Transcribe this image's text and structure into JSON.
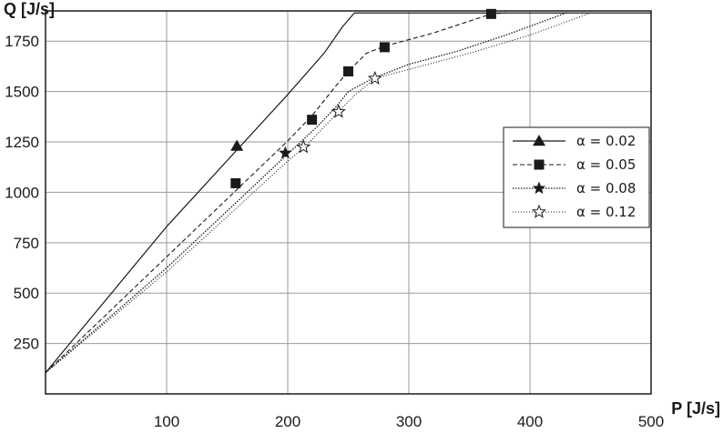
{
  "chart_data": {
    "type": "line",
    "xlabel": "P [J/s]",
    "ylabel": "Q [J/s]",
    "xlim": [
      0,
      500
    ],
    "ylim": [
      0,
      1900
    ],
    "xticks": [
      100,
      200,
      300,
      400,
      500
    ],
    "yticks": [
      250,
      500,
      750,
      1000,
      1250,
      1500,
      1750
    ],
    "grid": true,
    "legend_position": "right",
    "series": [
      {
        "name": "α = 0.02",
        "style": "solid",
        "marker": "triangle",
        "line": [
          [
            0,
            105
          ],
          [
            100,
            830
          ],
          [
            200,
            1485
          ],
          [
            230,
            1690
          ],
          [
            245,
            1820
          ],
          [
            255,
            1890
          ],
          [
            500,
            1890
          ]
        ],
        "markers": [
          [
            158,
            1230
          ]
        ]
      },
      {
        "name": "α = 0.05",
        "style": "dashed",
        "marker": "square",
        "line": [
          [
            0,
            105
          ],
          [
            100,
            680
          ],
          [
            200,
            1255
          ],
          [
            220,
            1380
          ],
          [
            240,
            1530
          ],
          [
            250,
            1600
          ],
          [
            265,
            1690
          ],
          [
            280,
            1725
          ],
          [
            320,
            1790
          ],
          [
            368,
            1885
          ],
          [
            380,
            1890
          ]
        ],
        "markers": [
          [
            157,
            1045
          ],
          [
            220,
            1360
          ],
          [
            250,
            1600
          ],
          [
            280,
            1720
          ],
          [
            368,
            1885
          ]
        ]
      },
      {
        "name": "α = 0.08",
        "style": "dotted",
        "marker": "star",
        "line": [
          [
            0,
            105
          ],
          [
            100,
            625
          ],
          [
            200,
            1190
          ],
          [
            225,
            1330
          ],
          [
            240,
            1425
          ],
          [
            250,
            1500
          ],
          [
            270,
            1565
          ],
          [
            300,
            1635
          ],
          [
            340,
            1700
          ],
          [
            380,
            1780
          ],
          [
            430,
            1890
          ]
        ],
        "markers": [
          [
            198,
            1195
          ]
        ]
      },
      {
        "name": "α = 0.12",
        "style": "fine-dotted",
        "marker": "open-star",
        "line": [
          [
            0,
            105
          ],
          [
            100,
            605
          ],
          [
            200,
            1155
          ],
          [
            215,
            1230
          ],
          [
            242,
            1400
          ],
          [
            255,
            1480
          ],
          [
            272,
            1565
          ],
          [
            300,
            1610
          ],
          [
            350,
            1690
          ],
          [
            400,
            1780
          ],
          [
            450,
            1890
          ]
        ],
        "markers": [
          [
            213,
            1225
          ],
          [
            242,
            1400
          ],
          [
            272,
            1565
          ]
        ]
      }
    ]
  }
}
